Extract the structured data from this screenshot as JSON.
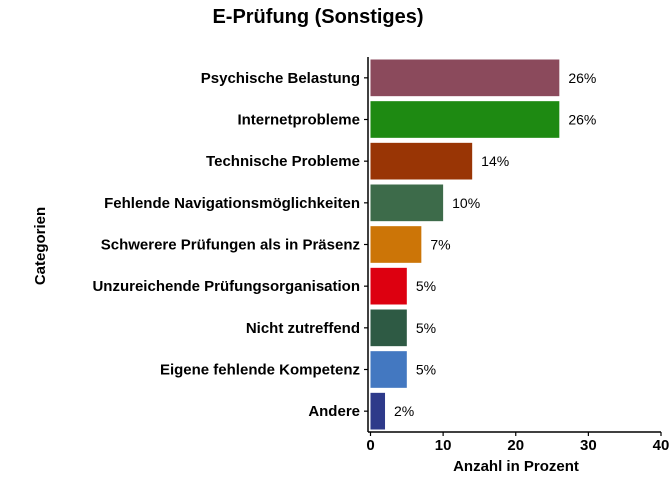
{
  "chart_data": {
    "type": "bar",
    "orientation": "horizontal",
    "title": "E-Prüfung (Sonstiges)",
    "xlabel": "Anzahl in Prozent",
    "ylabel": "Categorien",
    "xlim": [
      0,
      40
    ],
    "xticks": [
      "0",
      "10",
      "20",
      "30",
      "40"
    ],
    "grid": false,
    "legend": "none",
    "bars": [
      {
        "category": "Psychische Belastung",
        "value": 26,
        "label": "26%",
        "color": "#8B4A5C"
      },
      {
        "category": "Internetprobleme",
        "value": 26,
        "label": "26%",
        "color": "#1E8A12"
      },
      {
        "category": "Technische Probleme",
        "value": 14,
        "label": "14%",
        "color": "#993505"
      },
      {
        "category": "Fehlende Navigationsmöglichkeiten",
        "value": 10,
        "label": "10%",
        "color": "#3D6B4A"
      },
      {
        "category": "Schwerere Prüfungen als in Präsenz",
        "value": 7,
        "label": "7%",
        "color": "#CC7507"
      },
      {
        "category": "Unzureichende Prüfungsorganisation",
        "value": 5,
        "label": "5%",
        "color": "#DD0010"
      },
      {
        "category": "Nicht zutreffend",
        "value": 5,
        "label": "5%",
        "color": "#2E5A44"
      },
      {
        "category": "Eigene fehlende Kompetenz",
        "value": 5,
        "label": "5%",
        "color": "#4378C1"
      },
      {
        "category": "Andere",
        "value": 2,
        "label": "2%",
        "color": "#2E3A8A"
      }
    ]
  }
}
